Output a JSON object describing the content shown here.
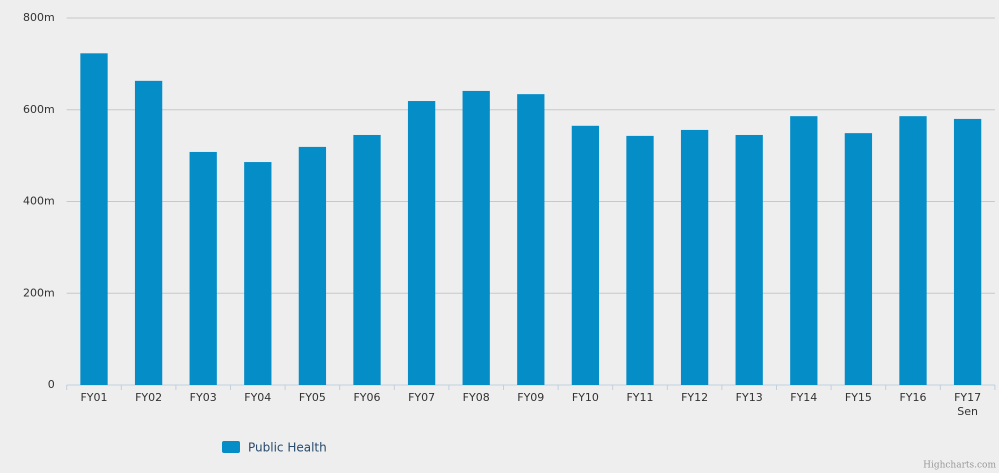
{
  "chart_data": {
    "type": "bar",
    "categories": [
      "FY01",
      "FY02",
      "FY03",
      "FY04",
      "FY05",
      "FY06",
      "FY07",
      "FY08",
      "FY09",
      "FY10",
      "FY11",
      "FY12",
      "FY13",
      "FY14",
      "FY15",
      "FY16",
      "FY17\nSen"
    ],
    "series": [
      {
        "name": "Public Health",
        "color": "#058dc7",
        "values": [
          723000000,
          663000000,
          508000000,
          486000000,
          519000000,
          545000000,
          619000000,
          641000000,
          634000000,
          565000000,
          543000000,
          556000000,
          545000000,
          586000000,
          549000000,
          586000000,
          580000000
        ]
      }
    ],
    "ylim": [
      0,
      800000000
    ],
    "yticks": [
      0,
      {
        "value": 200000000,
        "label": "200m"
      },
      {
        "value": 400000000,
        "label": "400m"
      },
      {
        "value": 600000000,
        "label": "600m"
      },
      {
        "value": 800000000,
        "label": "800m"
      }
    ],
    "grid": true,
    "legend": "bottom",
    "credits": "Highcharts.com"
  }
}
